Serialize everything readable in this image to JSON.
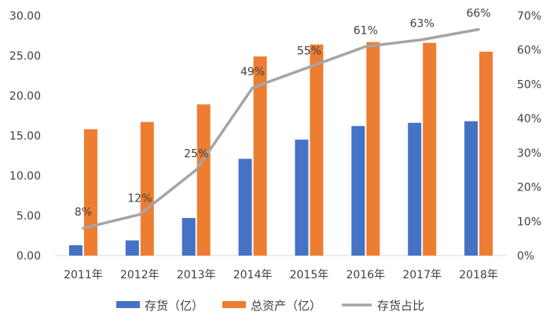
{
  "chart_data": {
    "type": "bar",
    "categories": [
      "2011年",
      "2012年",
      "2013年",
      "2014年",
      "2015年",
      "2016年",
      "2017年",
      "2018年"
    ],
    "series": [
      {
        "name": "存货（亿）",
        "kind": "bar",
        "axis": "left",
        "color": "#4472C4",
        "values": [
          1.3,
          1.9,
          4.7,
          12.1,
          14.5,
          16.2,
          16.6,
          16.8
        ]
      },
      {
        "name": "总资产（亿）",
        "kind": "bar",
        "axis": "left",
        "color": "#ED7D31",
        "values": [
          15.8,
          16.7,
          18.9,
          24.9,
          26.4,
          26.7,
          26.6,
          25.5
        ]
      },
      {
        "name": "存货占比",
        "kind": "line",
        "axis": "right",
        "color": "#A5A5A5",
        "values": [
          8,
          12,
          25,
          49,
          55,
          61,
          63,
          66
        ],
        "labels": [
          "8%",
          "12%",
          "25%",
          "49%",
          "55%",
          "61%",
          "63%",
          "66%"
        ]
      }
    ],
    "left_axis": {
      "ylim": [
        0,
        30
      ],
      "ticks": [
        "0.00",
        "5.00",
        "10.00",
        "15.00",
        "20.00",
        "25.00",
        "30.00"
      ]
    },
    "right_axis": {
      "ylim": [
        0,
        70
      ],
      "ticks": [
        "0%",
        "10%",
        "20%",
        "30%",
        "40%",
        "50%",
        "60%",
        "70%"
      ]
    },
    "grid": false,
    "legend_position": "bottom"
  }
}
